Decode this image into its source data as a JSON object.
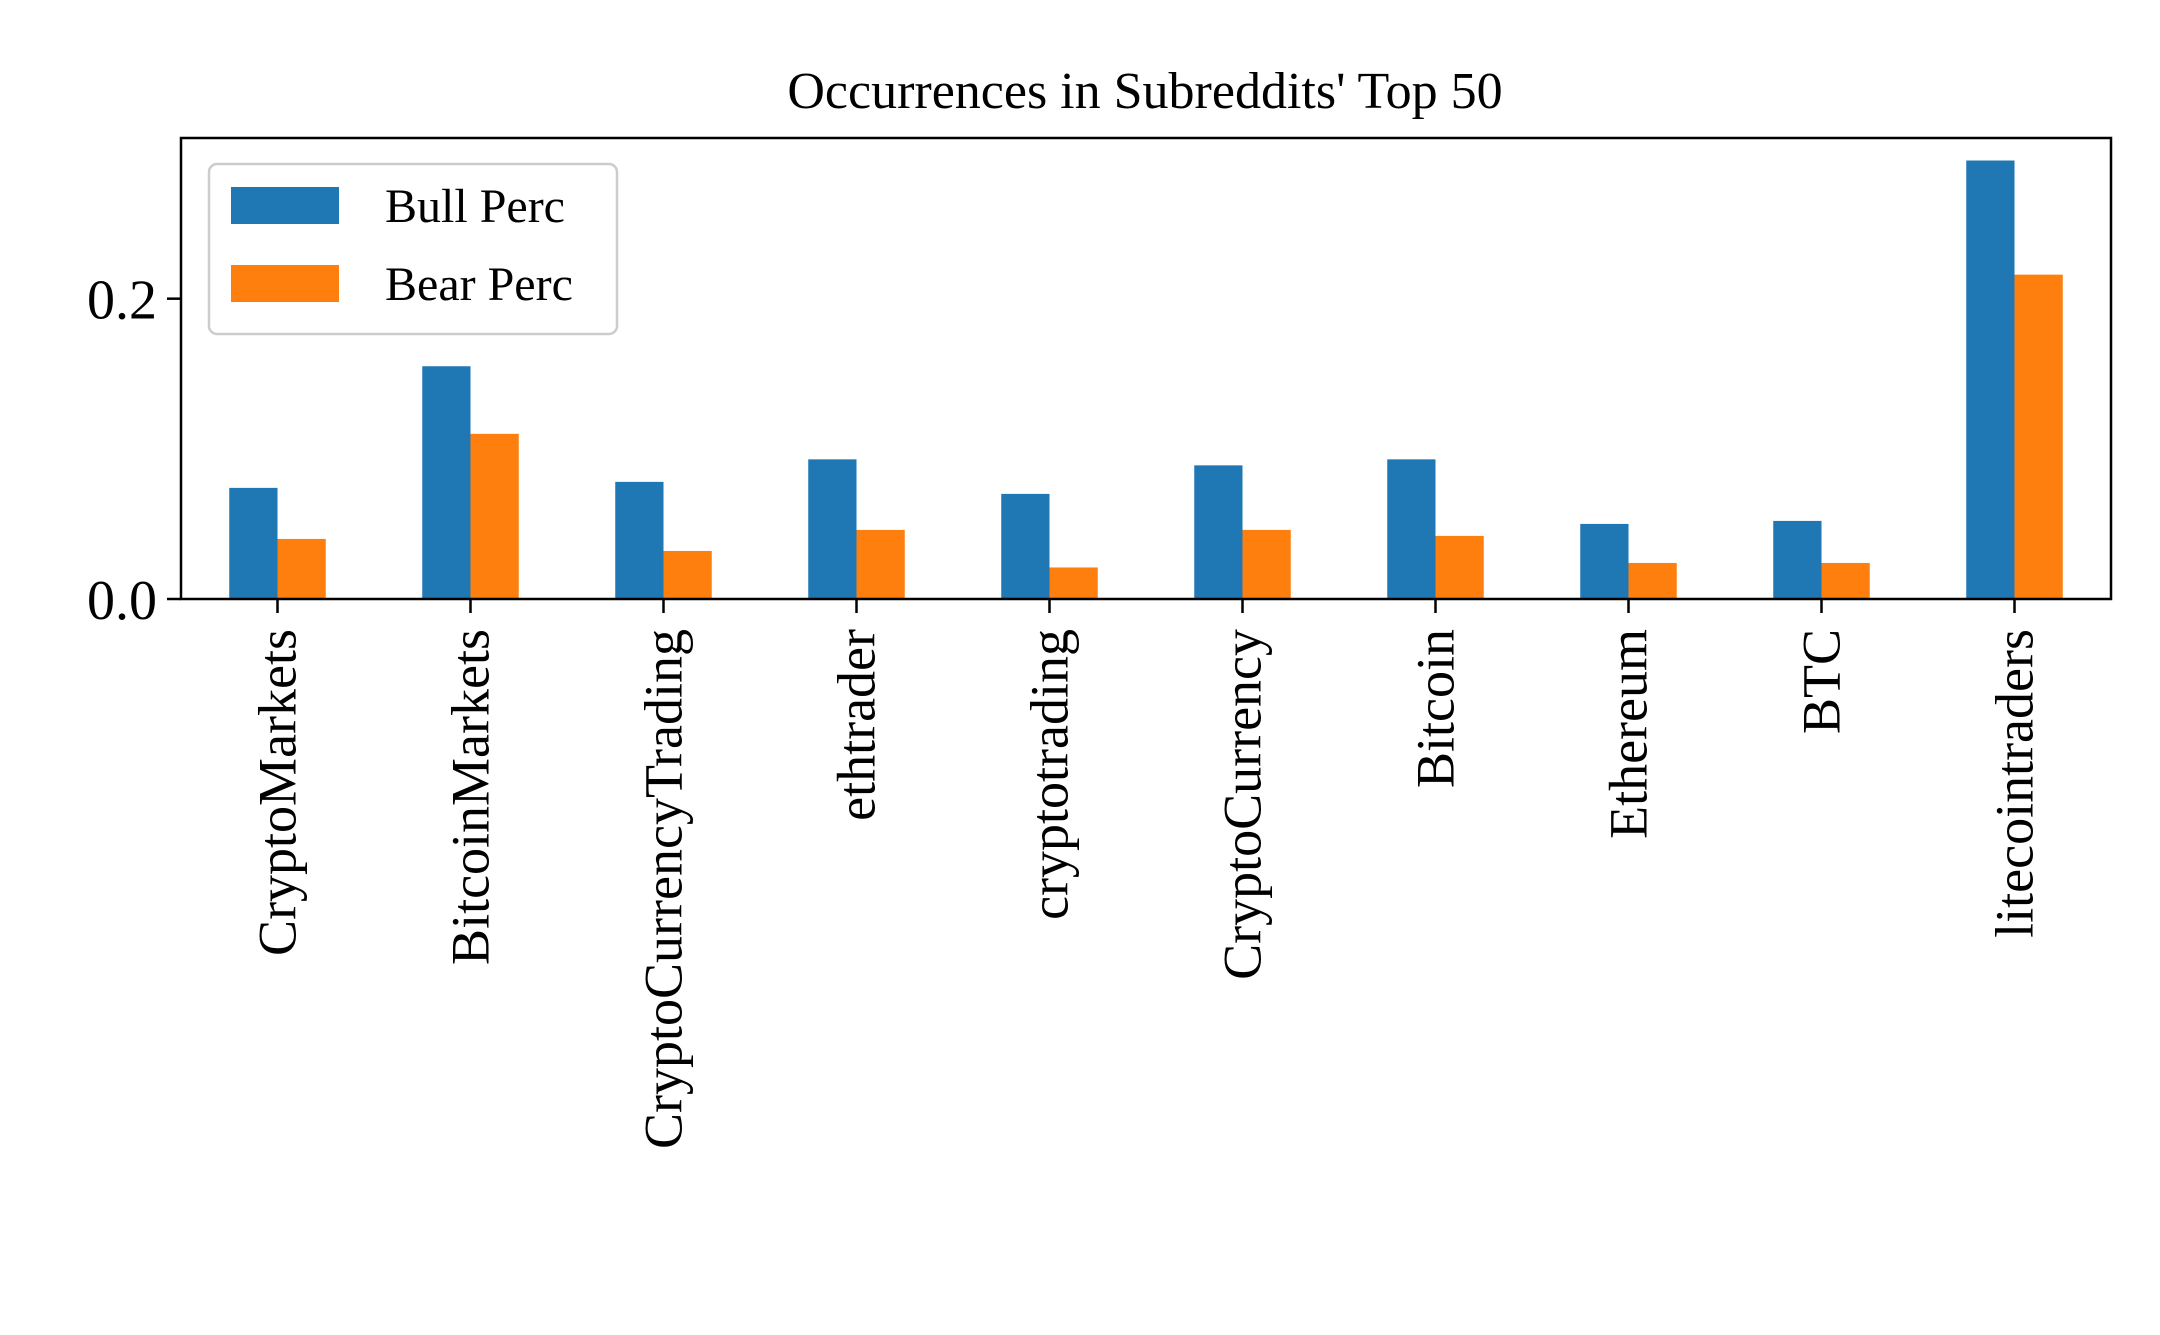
{
  "chart_data": {
    "type": "bar",
    "title": "Occurrences in Subreddits' Top 50",
    "xlabel": "",
    "ylabel": "",
    "categories": [
      "CryptoMarkets",
      "BitcoinMarkets",
      "CryptoCurrencyTrading",
      "ethtrader",
      "cryptotrading",
      "CryptoCurrency",
      "Bitcoin",
      "Ethereum",
      "BTC",
      "litecointraders"
    ],
    "series": [
      {
        "name": "Bull Perc",
        "color": "#1f77b4",
        "values": [
          0.074,
          0.155,
          0.078,
          0.093,
          0.07,
          0.089,
          0.093,
          0.05,
          0.052,
          0.292
        ]
      },
      {
        "name": "Bear Perc",
        "color": "#ff7f0e",
        "values": [
          0.04,
          0.11,
          0.032,
          0.046,
          0.021,
          0.046,
          0.042,
          0.024,
          0.024,
          0.216
        ]
      }
    ],
    "ylim": [
      0,
      0.307
    ],
    "yticks": [
      0.0,
      0.2
    ],
    "ytick_labels": [
      "0.0",
      "0.2"
    ],
    "grid": false,
    "legend_position": "upper-left"
  }
}
